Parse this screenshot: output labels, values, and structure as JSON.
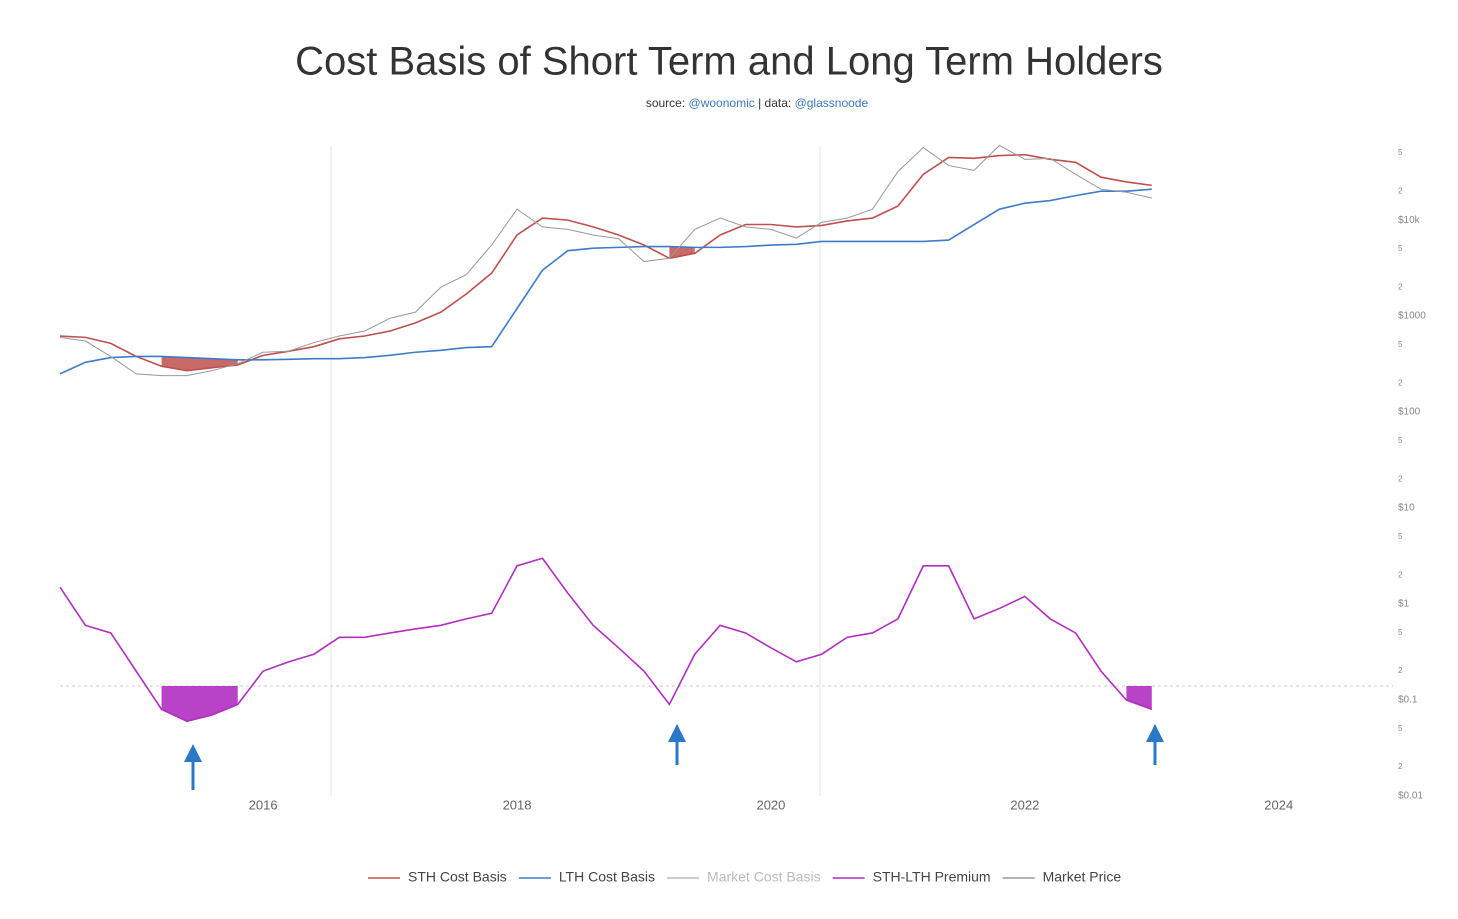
{
  "chart_data": {
    "type": "line",
    "title": "Cost Basis of Short Term and Long Term Holders",
    "subtitle": [
      "source:",
      "@woonomic",
      "| data:",
      "@glassnoode"
    ],
    "log_y": true,
    "grid": false,
    "legend": "bottom",
    "x": [
      2014.4,
      2014.6,
      2014.8,
      2015.0,
      2015.2,
      2015.4,
      2015.6,
      2015.8,
      2016.0,
      2016.2,
      2016.4,
      2016.6,
      2016.8,
      2017.0,
      2017.2,
      2017.4,
      2017.6,
      2017.8,
      2018.0,
      2018.2,
      2018.4,
      2018.6,
      2018.8,
      2019.0,
      2019.2,
      2019.4,
      2019.6,
      2019.8,
      2020.0,
      2020.2,
      2020.4,
      2020.6,
      2020.8,
      2021.0,
      2021.2,
      2021.4,
      2021.6,
      2021.8,
      2022.0,
      2022.2,
      2022.4,
      2022.6,
      2022.8,
      2023.0
    ],
    "xlim": [
      2014.4,
      2024.9
    ],
    "xticks": [
      2016,
      2018,
      2020,
      2022,
      2024
    ],
    "ylim": [
      0.01,
      70000
    ],
    "yticks": [
      {
        "value": 0.01,
        "label": "$0.01"
      },
      {
        "value": 0.02,
        "label": "2"
      },
      {
        "value": 0.05,
        "label": "5"
      },
      {
        "value": 0.1,
        "label": "$0.1"
      },
      {
        "value": 0.2,
        "label": "2"
      },
      {
        "value": 0.5,
        "label": "5"
      },
      {
        "value": 1,
        "label": "$1"
      },
      2,
      5,
      {
        "value": 10,
        "label": "$10"
      },
      {
        "value": 20,
        "label": "2"
      },
      {
        "value": 50,
        "label": "5"
      },
      {
        "value": 100,
        "label": "$100"
      },
      {
        "value": 200,
        "label": "2"
      },
      {
        "value": 500,
        "label": "5"
      },
      {
        "value": 1000,
        "label": "$1000"
      },
      {
        "value": 2000,
        "label": "2"
      },
      {
        "value": 5000,
        "label": "5"
      },
      {
        "value": 10000,
        "label": "$10k"
      },
      {
        "value": 20000,
        "label": "2"
      },
      {
        "value": 50000,
        "label": "5"
      }
    ],
    "premium_reference": 0.14,
    "series": [
      {
        "name": "STH Cost Basis",
        "color": "#c0504d",
        "values": [
          620,
          600,
          520,
          380,
          300,
          270,
          290,
          310,
          390,
          430,
          480,
          580,
          620,
          700,
          850,
          1100,
          1700,
          2800,
          7000,
          10500,
          10000,
          8500,
          7000,
          5500,
          4000,
          4500,
          7000,
          9000,
          9000,
          8500,
          8800,
          9800,
          10500,
          14000,
          30000,
          45000,
          44000,
          47000,
          48000,
          43000,
          40000,
          28000,
          25000,
          23000
        ]
      },
      {
        "name": "LTH Cost Basis",
        "color": "#3d7cc9",
        "values": [
          250,
          330,
          370,
          380,
          380,
          370,
          360,
          350,
          350,
          355,
          360,
          360,
          370,
          390,
          420,
          440,
          470,
          480,
          1200,
          3000,
          4800,
          5100,
          5200,
          5300,
          5300,
          5200,
          5200,
          5300,
          5500,
          5600,
          6000,
          6000,
          6000,
          6000,
          6000,
          6200,
          9000,
          13000,
          15000,
          16000,
          18000,
          20000,
          20000,
          21000
        ]
      },
      {
        "name": "Market Cost Basis",
        "color": "#bbbbbb",
        "visible": false,
        "values": [
          null,
          null,
          null,
          null,
          null,
          null,
          null,
          null,
          null,
          null,
          null,
          null,
          null,
          null,
          null,
          null,
          null,
          null,
          null,
          null,
          null,
          null,
          null,
          null,
          null,
          null,
          null,
          null,
          null,
          null,
          null,
          null,
          null,
          null,
          null,
          null,
          null,
          null,
          null,
          null,
          null,
          null,
          null,
          null
        ]
      },
      {
        "name": "STH-LTH Premium",
        "color": "#b02fc0",
        "fill_below_reference": true,
        "values": [
          1.5,
          0.6,
          0.5,
          0.2,
          0.08,
          0.06,
          0.07,
          0.09,
          0.2,
          0.25,
          0.3,
          0.45,
          0.45,
          0.5,
          0.55,
          0.6,
          0.7,
          0.8,
          2.5,
          3,
          1.3,
          0.6,
          0.35,
          0.2,
          0.09,
          0.3,
          0.6,
          0.5,
          0.35,
          0.25,
          0.3,
          0.45,
          0.5,
          0.7,
          2.5,
          2.5,
          0.7,
          0.9,
          1.2,
          0.7,
          0.5,
          0.2,
          0.1,
          0.08
        ]
      },
      {
        "name": "Market Price",
        "color": "#999999",
        "values": [
          600,
          550,
          380,
          250,
          240,
          240,
          270,
          320,
          420,
          430,
          530,
          620,
          700,
          950,
          1100,
          2000,
          2700,
          5500,
          13000,
          8500,
          8000,
          7000,
          6400,
          3700,
          4000,
          8000,
          10500,
          8500,
          8000,
          6500,
          9500,
          10500,
          13000,
          32000,
          57000,
          37000,
          33000,
          60000,
          43000,
          44000,
          30000,
          21000,
          19500,
          17000
        ]
      }
    ]
  }
}
